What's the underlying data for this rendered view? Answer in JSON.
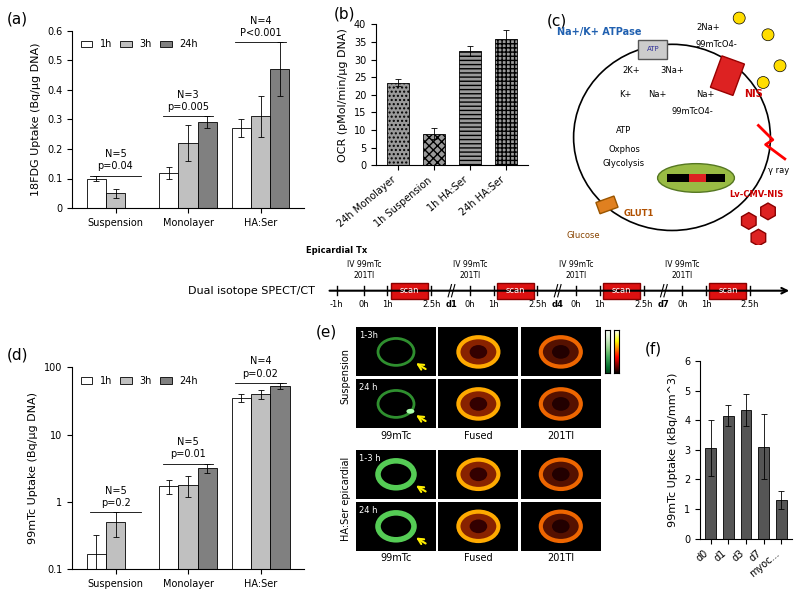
{
  "chart_data": [
    {
      "type": "bar",
      "title": "(a)",
      "y_label": "18FDG Uptake (Bq/μg DNA)",
      "categories": [
        "Suspension",
        "Monolayer",
        "HA:Ser"
      ],
      "series": [
        {
          "name": "1h",
          "color": "#ffffff",
          "values": [
            0.1,
            0.12,
            0.27
          ],
          "errors": [
            0.01,
            0.02,
            0.03
          ]
        },
        {
          "name": "3h",
          "color": "#c0c0c0",
          "values": [
            0.05,
            0.22,
            0.31
          ],
          "errors": [
            0.015,
            0.06,
            0.07
          ]
        },
        {
          "name": "24h",
          "color": "#808080",
          "values": [
            null,
            0.29,
            0.47
          ],
          "errors": [
            null,
            0.02,
            0.09
          ]
        }
      ],
      "ylim": [
        0,
        0.6
      ],
      "yticks": [
        0,
        0.1,
        0.2,
        0.3,
        0.4,
        0.5,
        0.6
      ],
      "legend": "upper left",
      "annotations": [
        {
          "category": "Suspension",
          "n": "N=5",
          "p": "p=0.04"
        },
        {
          "category": "Monolayer",
          "n": "N=3",
          "p": "p=0.005"
        },
        {
          "category": "HA:Ser",
          "n": "N=4",
          "p": "P<0.001"
        }
      ]
    },
    {
      "type": "bar",
      "title": "(b)",
      "y_label": "OCR (pMol/min/μg DNA)",
      "categories": [
        "24h Monolayer",
        "1h Suspension",
        "1h HA:Ser",
        "24h HA:Ser"
      ],
      "values": [
        23.5,
        9,
        32.5,
        36
      ],
      "errors": [
        1,
        1.5,
        1.5,
        2.5
      ],
      "color": "#9a9a9a",
      "ylim": [
        0,
        40
      ],
      "yticks": [
        0,
        5,
        10,
        15,
        20,
        25,
        30,
        35,
        40
      ]
    },
    {
      "type": "bar",
      "title": "(d)",
      "y_label": "99mTc Uptake (Bq/μg DNA)",
      "log": "y",
      "categories": [
        "Suspension",
        "Monolayer",
        "HA:Ser"
      ],
      "series": [
        {
          "name": "1h",
          "color": "#ffffff",
          "values": [
            0.17,
            1.7,
            35
          ],
          "errors": [
            0.15,
            0.4,
            5
          ]
        },
        {
          "name": "3h",
          "color": "#c0c0c0",
          "values": [
            0.5,
            1.8,
            40
          ],
          "errors": [
            0.2,
            0.6,
            6
          ]
        },
        {
          "name": "24h",
          "color": "#808080",
          "values": [
            null,
            3.2,
            53
          ],
          "errors": [
            null,
            0.5,
            5
          ]
        }
      ],
      "ylim": [
        0.1,
        100
      ],
      "yticks": [
        0.1,
        1,
        10,
        100
      ],
      "legend": "upper left",
      "annotations": [
        {
          "category": "Suspension",
          "n": "N=5",
          "p": "p=0.2"
        },
        {
          "category": "Monolayer",
          "n": "N=5",
          "p": "p=0.01"
        },
        {
          "category": "HA:Ser",
          "n": "N=4",
          "p": "p=0.02"
        }
      ]
    },
    {
      "type": "bar",
      "title": "(f)",
      "y_label": "99mTc Uptake (kBq/mm^3)",
      "categories": [
        "d0",
        "d1",
        "d3",
        "d7",
        "myoc..."
      ],
      "values": [
        3.05,
        4.15,
        4.35,
        3.1,
        1.3
      ],
      "errors": [
        0.95,
        0.35,
        0.55,
        1.1,
        0.3
      ],
      "color": "#555555",
      "ylim": [
        0,
        6
      ],
      "yticks": [
        0,
        1,
        2,
        3,
        4,
        5,
        6
      ]
    }
  ],
  "diagram": {
    "title": "(c)",
    "atpase": "Na+/K+ ATPase",
    "k_out": "2K+",
    "na_out": "3Na+",
    "atp_pump": "ATP",
    "na_nis": "2Na+",
    "tc_out": "99mTcO4-",
    "nis": "NIS",
    "na_in": "Na+",
    "k_in": "K+",
    "na_in2": "Na+",
    "tc_in": "99mTcO4-",
    "atp": "ATP",
    "oxphos": "Oxphos",
    "glycolysis": "Glycolysis",
    "glut1": "GLUT1",
    "glucose": "Glucose",
    "vector": "Lv-CMV-NIS",
    "gamma": "γ ray"
  },
  "timeline": {
    "label": "Dual isotope SPECT/CT",
    "treatment": "Epicardial Tx",
    "start": "-1h",
    "days": [
      "d1",
      "d4",
      "d7"
    ],
    "times": [
      "0h",
      "1h",
      "2.5h"
    ],
    "injection": [
      "IV 99mTc",
      "201Tl"
    ],
    "scan": "scan"
  },
  "images": {
    "title": "(e)",
    "groups": [
      {
        "label": "Suspension",
        "times": [
          "1-3h",
          "24 h"
        ]
      },
      {
        "label": "HA:Ser epicardial",
        "times": [
          "1-3 h",
          "24 h"
        ]
      }
    ],
    "columns": [
      "99mTc",
      "Fused",
      "201Tl"
    ]
  }
}
